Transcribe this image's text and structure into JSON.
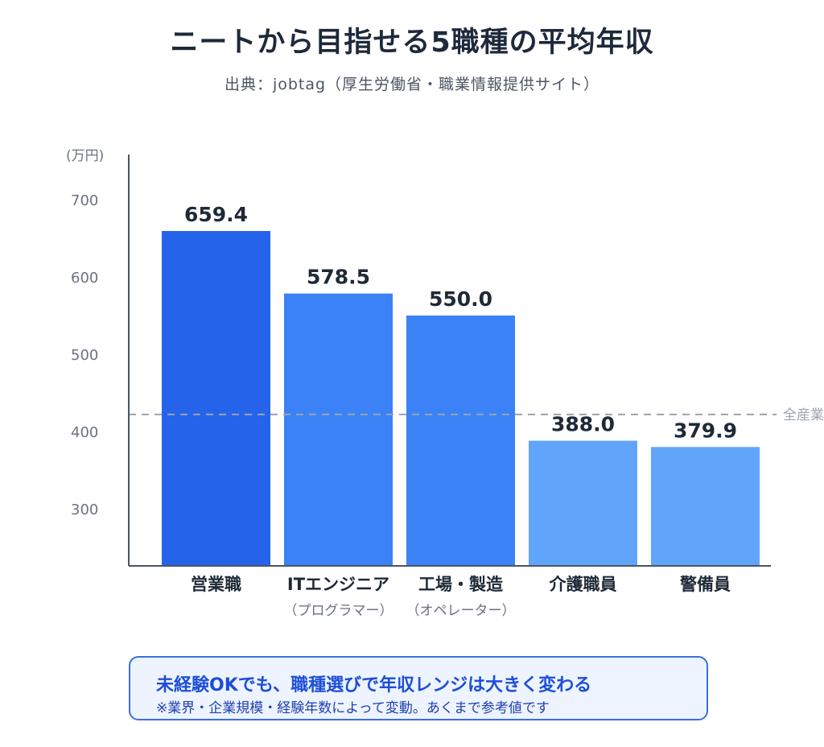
{
  "title": "ニートから目指せる5職種の平均年収",
  "subtitle": "出典：jobtag（厚生労働省・職業情報提供サイト）",
  "chart_data": {
    "type": "bar",
    "unit_label": "(万円)",
    "categories": [
      {
        "label": "営業職",
        "sub": ""
      },
      {
        "label": "ITエンジニア",
        "sub": "（プログラマー）"
      },
      {
        "label": "工場・製造",
        "sub": "（オペレーター）"
      },
      {
        "label": "介護職員",
        "sub": ""
      },
      {
        "label": "警備員",
        "sub": ""
      }
    ],
    "values": [
      659.4,
      578.5,
      550.0,
      388.0,
      379.9
    ],
    "value_labels": [
      "659.4",
      "578.5",
      "550.0",
      "388.0",
      "379.9"
    ],
    "bar_colors": [
      "#2563eb",
      "#3b82f6",
      "#3b82f6",
      "#60a5fa",
      "#60a5fa"
    ],
    "y_ticks": [
      300,
      400,
      500,
      600,
      700
    ],
    "ylim": [
      210,
      740
    ],
    "reference_line": {
      "value": 422,
      "label": "全産業"
    },
    "grid": false
  },
  "callout": {
    "main": "未経験OKでも、職種選びで年収レンジは大きく変わる",
    "note": "※業界・企業規模・経験年数によって変動。あくまで参考値です"
  }
}
